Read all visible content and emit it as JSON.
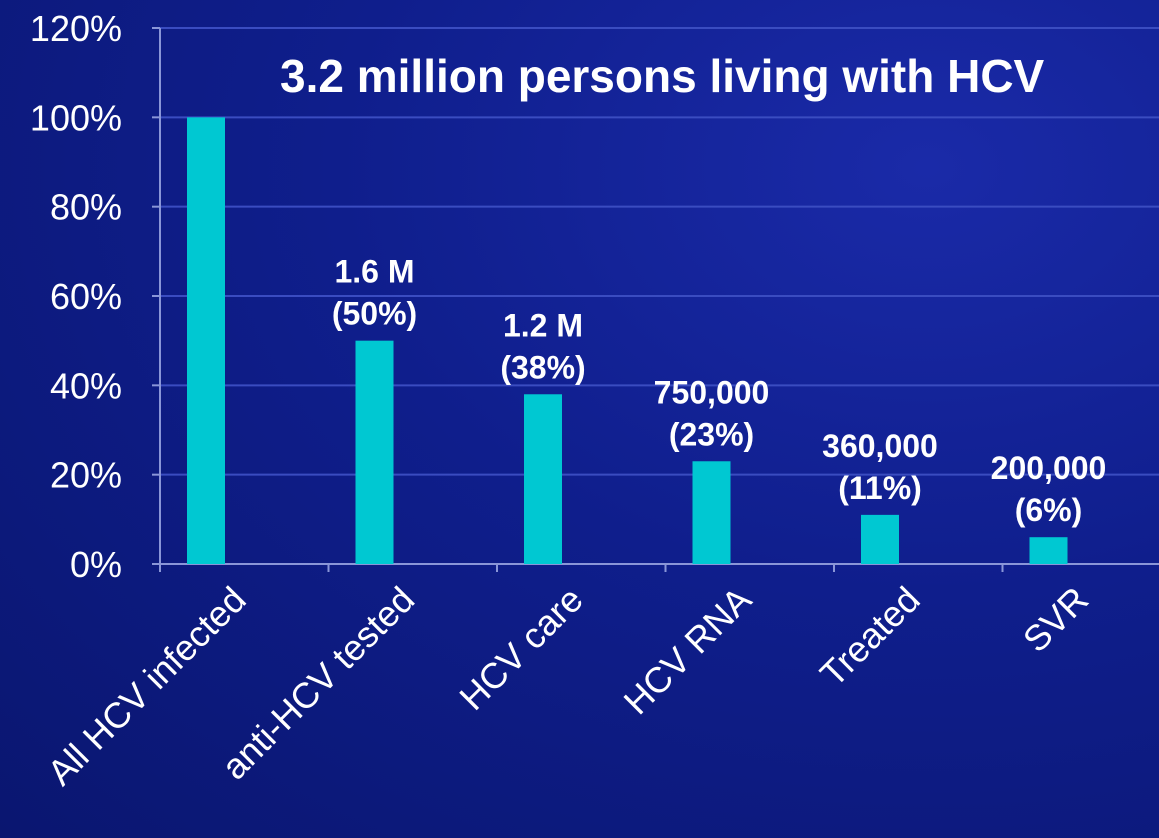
{
  "chart_data": {
    "type": "bar",
    "title": "3.2 million persons living with HCV",
    "categories": [
      "All HCV infected",
      "anti-HCV tested",
      "HCV care",
      "HCV RNA",
      "Treated",
      "SVR"
    ],
    "values": [
      100,
      50,
      38,
      23,
      11,
      6
    ],
    "data_labels": [
      [],
      [
        "1.6 M",
        "(50%)"
      ],
      [
        "1.2 M",
        "(38%)"
      ],
      [
        "750,000",
        "(23%)"
      ],
      [
        "360,000",
        "(11%)"
      ],
      [
        "200,000",
        "(6%)"
      ]
    ],
    "y_ticks": [
      "0%",
      "20%",
      "40%",
      "60%",
      "80%",
      "100%",
      "120%"
    ],
    "y_tick_values": [
      0,
      20,
      40,
      60,
      80,
      100,
      120
    ],
    "ylim": [
      0,
      120
    ],
    "xlabel": "",
    "ylabel": "",
    "grid": true,
    "colors": {
      "bar": "#00c8d2",
      "grid": "#3a4cc0",
      "axis": "#8a96d8",
      "text": "#ffffff"
    }
  }
}
